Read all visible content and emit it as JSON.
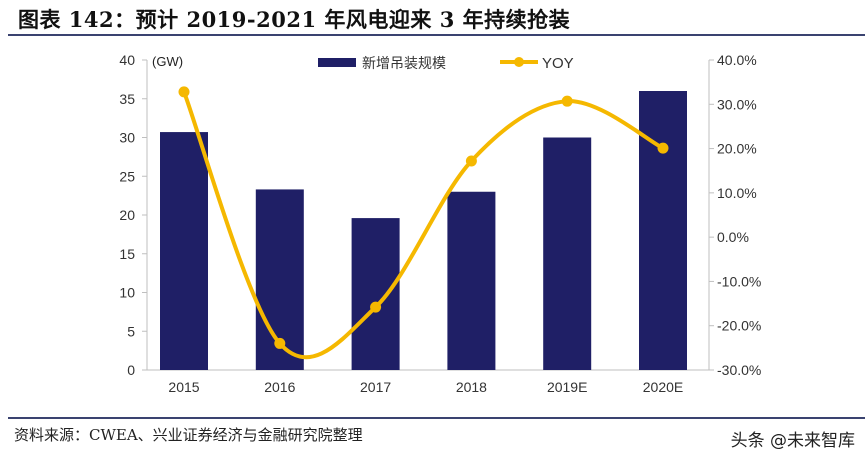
{
  "title": "图表 142：预计 2019-2021 年风电迎来 3 年持续抢装",
  "source": "资料来源：CWEA、兴业证券经济与金融研究院整理",
  "watermark": "头条 @未来智库",
  "chart_data": {
    "type": "bar+line",
    "categories": [
      "2015",
      "2016",
      "2017",
      "2018",
      "2019E",
      "2020E"
    ],
    "series": [
      {
        "name": "新增吊装规模",
        "type": "bar",
        "axis": "left",
        "color": "#1f1f66",
        "values": [
          30.7,
          23.3,
          19.6,
          23.0,
          30.0,
          36.0
        ]
      },
      {
        "name": "YOY",
        "type": "line",
        "axis": "right",
        "color": "#f5b800",
        "values": [
          32.8,
          -24.0,
          -15.8,
          17.2,
          30.7,
          20.1
        ]
      }
    ],
    "left_axis": {
      "unit_label": "(GW)",
      "ylim": [
        0,
        40
      ],
      "ticks": [
        "0",
        "5",
        "10",
        "15",
        "20",
        "25",
        "30",
        "35",
        "40"
      ]
    },
    "right_axis": {
      "ylim": [
        -30,
        40
      ],
      "ticks": [
        "-30.0%",
        "-20.0%",
        "-10.0%",
        "0.0%",
        "10.0%",
        "20.0%",
        "30.0%",
        "40.0%"
      ]
    },
    "legend_position": "top-right",
    "grid": false
  }
}
